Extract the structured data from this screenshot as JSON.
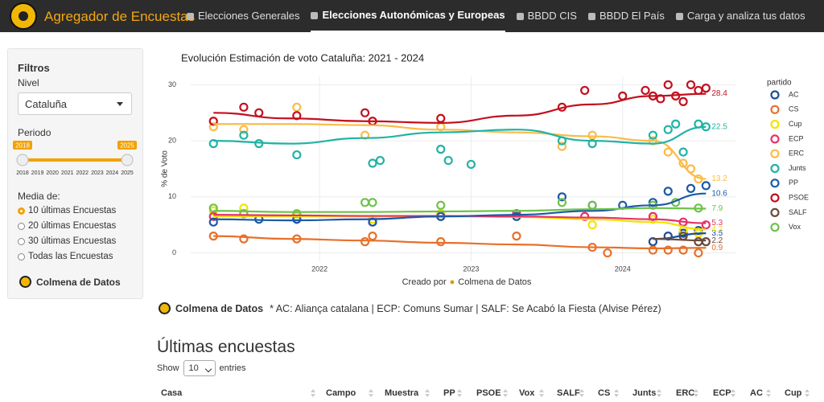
{
  "navbar": {
    "brand": "Agregador de Encuestas",
    "items": [
      "Elecciones Generales",
      "Elecciones Autonómicas y Europeas",
      "BBDD CIS",
      "BBDD El País",
      "Carga y analiza tus datos"
    ],
    "active": 1
  },
  "sidebar": {
    "title": "Filtros",
    "nivel_label": "Nivel",
    "nivel_value": "Cataluña",
    "periodo_label": "Periodo",
    "slider": {
      "value": [
        2018,
        2025
      ],
      "ticks": [
        2018,
        2019,
        2020,
        2021,
        2022,
        2023,
        2024,
        2025
      ]
    },
    "media_label": "Media de:",
    "media_options": [
      "10 últimas Encuestas",
      "20 últimas Encuestas",
      "30 últimas Encuestas",
      "Todas las Encuestas"
    ],
    "media_selected": 0,
    "brand": "Colmena de Datos"
  },
  "chart_data": {
    "type": "scatter",
    "title": "Evolución Estimación de voto Cataluña: 2021 - 2024",
    "y_label": "% de Voto",
    "x_label": "Creado por",
    "x_label_brand": "Colmena de Datos",
    "legend_title": "partido",
    "xlim": [
      2021.15,
      2024.75
    ],
    "xticks": [
      2022,
      2023,
      2024
    ],
    "ylim": [
      -1.5,
      31.5
    ],
    "yticks": [
      0,
      10,
      20,
      30
    ],
    "grid": true,
    "trend_x": [
      2021.3,
      2021.8,
      2022.3,
      2022.8,
      2023.3,
      2023.8,
      2024.2,
      2024.55
    ],
    "series": [
      {
        "name": "AC",
        "color": "#1f4e96",
        "x": [
          2024.2,
          2024.3,
          2024.4,
          2024.5
        ],
        "values": [
          2,
          3,
          3.5,
          4
        ],
        "trend": [
          null,
          null,
          null,
          null,
          null,
          null,
          2.5,
          3.5
        ]
      },
      {
        "name": "CS",
        "color": "#e8702a",
        "x": [
          2021.3,
          2021.5,
          2021.85,
          2022.3,
          2022.35,
          2022.8,
          2023.3,
          2023.8,
          2023.9,
          2024.2,
          2024.3,
          2024.4,
          2024.5
        ],
        "values": [
          3,
          2.5,
          2.5,
          2,
          3,
          2,
          3,
          1,
          0,
          0.5,
          0.5,
          0.5,
          0
        ],
        "trend": [
          3,
          2.5,
          2.2,
          1.8,
          1.5,
          1,
          0.8,
          0.9
        ]
      },
      {
        "name": "Cup",
        "color": "#f2e300",
        "x": [
          2021.3,
          2021.5,
          2021.85,
          2022.35,
          2022.8,
          2023.3,
          2023.8,
          2024.2,
          2024.4,
          2024.5
        ],
        "values": [
          7.5,
          8,
          6.5,
          6,
          7,
          6.5,
          5,
          6,
          4,
          3.5
        ],
        "trend": [
          6.5,
          6.5,
          6.5,
          6.5,
          6.4,
          6,
          5.5,
          4.2
        ]
      },
      {
        "name": "ECP",
        "color": "#e5336d",
        "x": [
          2021.3,
          2021.5,
          2021.85,
          2022.35,
          2022.8,
          2023.3,
          2023.75,
          2024.2,
          2024.4,
          2024.55
        ],
        "values": [
          6.5,
          7,
          6,
          5.5,
          6.5,
          7,
          6.5,
          6.5,
          5.5,
          5
        ],
        "trend": [
          6.8,
          6.7,
          6.6,
          6.6,
          6.5,
          6.3,
          6,
          5.3
        ]
      },
      {
        "name": "ERC",
        "color": "#fbbb48",
        "x": [
          2021.3,
          2021.5,
          2021.85,
          2022.3,
          2022.8,
          2023.6,
          2023.8,
          2024.2,
          2024.3,
          2024.4,
          2024.45,
          2024.5
        ],
        "values": [
          22.5,
          22,
          26,
          21,
          22.5,
          19,
          21,
          20,
          18,
          16,
          15,
          13.2
        ],
        "trend": [
          23,
          23,
          22.8,
          22,
          21.5,
          20.8,
          20,
          13.2
        ]
      },
      {
        "name": "Junts",
        "color": "#22b3a6",
        "x": [
          2021.3,
          2021.5,
          2021.6,
          2021.85,
          2022.35,
          2022.4,
          2022.8,
          2022.85,
          2023.0,
          2023.6,
          2023.8,
          2024.2,
          2024.3,
          2024.35,
          2024.4,
          2024.5,
          2024.55
        ],
        "values": [
          19.5,
          21,
          19.5,
          17.5,
          16,
          16.5,
          18.5,
          16.5,
          15.8,
          20,
          19.5,
          21,
          22,
          23,
          18,
          23,
          22.5
        ],
        "trend": [
          20,
          19.5,
          20.5,
          21.5,
          22,
          20,
          19.5,
          22.5
        ]
      },
      {
        "name": "PP",
        "color": "#1c5aa5",
        "x": [
          2021.3,
          2021.6,
          2021.85,
          2022.35,
          2022.8,
          2023.3,
          2023.6,
          2023.8,
          2024.0,
          2024.2,
          2024.3,
          2024.45,
          2024.55
        ],
        "values": [
          5.5,
          6,
          6,
          5.5,
          6.5,
          6.5,
          10,
          8.5,
          8.5,
          9,
          11,
          11.5,
          12
        ],
        "trend": [
          6,
          5.8,
          6,
          6.5,
          6.8,
          7.5,
          8.5,
          10.6
        ]
      },
      {
        "name": "PSOE",
        "color": "#c3101e",
        "x": [
          2021.3,
          2021.5,
          2021.6,
          2021.85,
          2022.3,
          2022.35,
          2022.8,
          2023.6,
          2023.75,
          2024.0,
          2024.15,
          2024.2,
          2024.25,
          2024.3,
          2024.35,
          2024.4,
          2024.45,
          2024.5,
          2024.55
        ],
        "values": [
          23.5,
          26,
          25,
          24.5,
          25,
          23.5,
          24,
          26,
          29,
          28,
          29,
          28,
          27.5,
          30,
          28,
          27,
          30,
          29,
          29.4
        ],
        "trend": [
          25,
          24,
          23.5,
          23.2,
          24.5,
          26.5,
          28,
          28.4
        ]
      },
      {
        "name": "SALF",
        "color": "#6a4b3c",
        "x": [
          2024.4,
          2024.5,
          2024.55
        ],
        "values": [
          3,
          2,
          2
        ],
        "trend": [
          null,
          null,
          null,
          null,
          null,
          null,
          2.5,
          2.2
        ]
      },
      {
        "name": "Vox",
        "color": "#6dc249",
        "x": [
          2021.3,
          2021.5,
          2021.85,
          2022.3,
          2022.35,
          2022.8,
          2023.6,
          2023.8,
          2024.2,
          2024.35,
          2024.5
        ],
        "values": [
          8,
          7,
          7,
          9,
          9,
          8.5,
          9,
          8.5,
          8.5,
          9,
          8
        ],
        "trend": [
          7.5,
          7.3,
          7.3,
          7.4,
          7.5,
          7.8,
          8,
          7.9
        ]
      }
    ]
  },
  "note": {
    "brand": "Colmena de Datos",
    "text": "* AC: Aliança catalana | ECP: Comuns Sumar | SALF: Se Acabó la Fiesta (Alvise Pérez)"
  },
  "table": {
    "title": "Últimas encuestas",
    "show_label": "Show",
    "show_value": "10",
    "entries_label": "entries",
    "headers": [
      "Casa",
      "Campo",
      "Muestra",
      "PP",
      "PSOE",
      "Vox",
      "SALF",
      "CS",
      "Junts",
      "ERC",
      "ECP",
      "AC",
      "Cup"
    ]
  }
}
